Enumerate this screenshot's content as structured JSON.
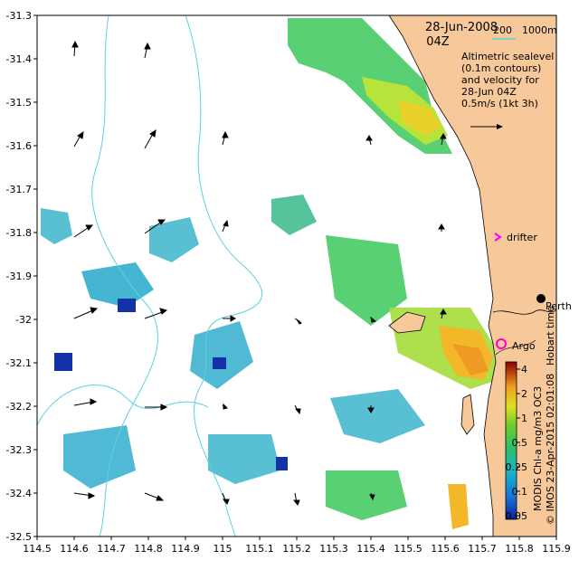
{
  "map": {
    "date": "28-Jun-2008",
    "time": "04Z",
    "scale_min": "200",
    "scale_max": "1000m",
    "legend_lines": [
      "Altimetric sealevel",
      "(0.1m contours)",
      "and velocity for",
      "28-Jun 04Z",
      "0.5m/s (1kt 3h)"
    ],
    "drifter_label": "drifter",
    "argo_label": "Argo",
    "perth_label": "Perth",
    "hobart_text": "Hobart time",
    "credit_text": "© IMOS 23-Apr-2015 02:01:08",
    "product_text": "MODIS Chl-a mg/m3 OC3",
    "colorbar_ticks": [
      "4",
      "2",
      "1",
      "0.5",
      "0.25",
      "0.1",
      "0.05"
    ],
    "x_ticks": [
      "114.5",
      "114.6",
      "114.7",
      "114.8",
      "114.9",
      "115",
      "115.1",
      "115.2",
      "115.3",
      "115.4",
      "115.5",
      "115.6",
      "115.7",
      "115.8",
      "115.9"
    ],
    "y_ticks": [
      "-31.3",
      "-31.4",
      "-31.5",
      "-31.6",
      "-31.7",
      "-31.8",
      "-31.9",
      "-32",
      "-32.1",
      "-32.2",
      "-32.3",
      "-32.4",
      "-32.5"
    ],
    "colors": {
      "land": "#f6c89a",
      "contour": "#5fd0e0",
      "drifter": "#ff00ff",
      "argo": "#ff00cc"
    },
    "extent": {
      "lon_min": 114.5,
      "lon_max": 115.9,
      "lat_min": -32.5,
      "lat_max": -31.3
    }
  }
}
